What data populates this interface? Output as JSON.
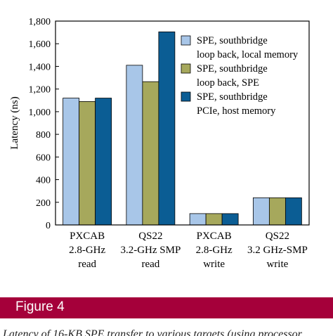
{
  "chart_data": {
    "type": "bar",
    "title": "",
    "xlabel": "",
    "ylabel": "Latency (ns)",
    "ylim": [
      0,
      1800
    ],
    "yticks": [
      0,
      200,
      400,
      600,
      800,
      1000,
      1200,
      1400,
      1600,
      1800
    ],
    "ytick_labels": [
      "0",
      "200",
      "400",
      "600",
      "800",
      "1,000",
      "1,200",
      "1,400",
      "1,600",
      "1,800"
    ],
    "categories": [
      [
        "PXCAB",
        "2.8-GHz",
        "read"
      ],
      [
        "QS22",
        "3.2-GHz SMP",
        "read"
      ],
      [
        "PXCAB",
        "2.8-GHz",
        "write"
      ],
      [
        "QS22",
        "3.2 GHz-SMP",
        "write"
      ]
    ],
    "series": [
      {
        "name": [
          "SPE, southbridge",
          "loop back, local memory"
        ],
        "color": "#a8c6e8",
        "values": [
          1120,
          1410,
          100,
          240
        ]
      },
      {
        "name": [
          "SPE, southbridge",
          "loop back, SPE"
        ],
        "color": "#a6a85c",
        "values": [
          1090,
          1265,
          100,
          240
        ]
      },
      {
        "name": [
          "SPE, southbridge",
          "PCIe, host memory"
        ],
        "color": "#0b5d94",
        "values": [
          1120,
          1705,
          100,
          240
        ]
      }
    ],
    "legend_position": "top-right",
    "grid": false
  },
  "figure": {
    "label": "Figure 4",
    "caption": "Latency of 16-KB SPE transfer to various targets (using processor"
  }
}
